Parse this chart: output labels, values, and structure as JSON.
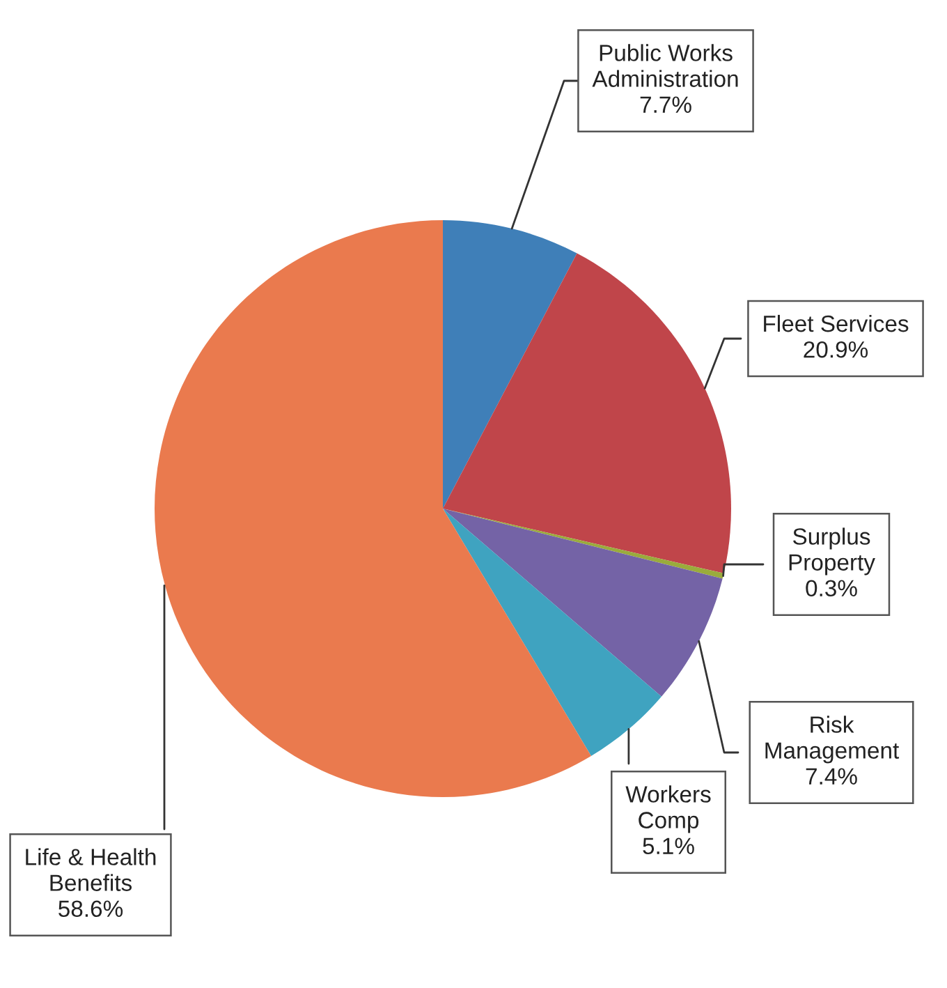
{
  "chart_data": {
    "type": "pie",
    "categories": [
      "Public Works Administration",
      "Fleet Services",
      "Surplus Property",
      "Risk Management",
      "Workers Comp",
      "Life & Health Benefits"
    ],
    "values": [
      7.7,
      20.9,
      0.3,
      7.4,
      5.1,
      58.6
    ],
    "value_labels": [
      "7.7%",
      "20.9%",
      "0.3%",
      "7.4%",
      "5.1%",
      "58.6%"
    ],
    "colors": [
      "#3f7fb8",
      "#c0454a",
      "#9aab3c",
      "#7463a6",
      "#3fa3c0",
      "#ea7a4e"
    ]
  }
}
